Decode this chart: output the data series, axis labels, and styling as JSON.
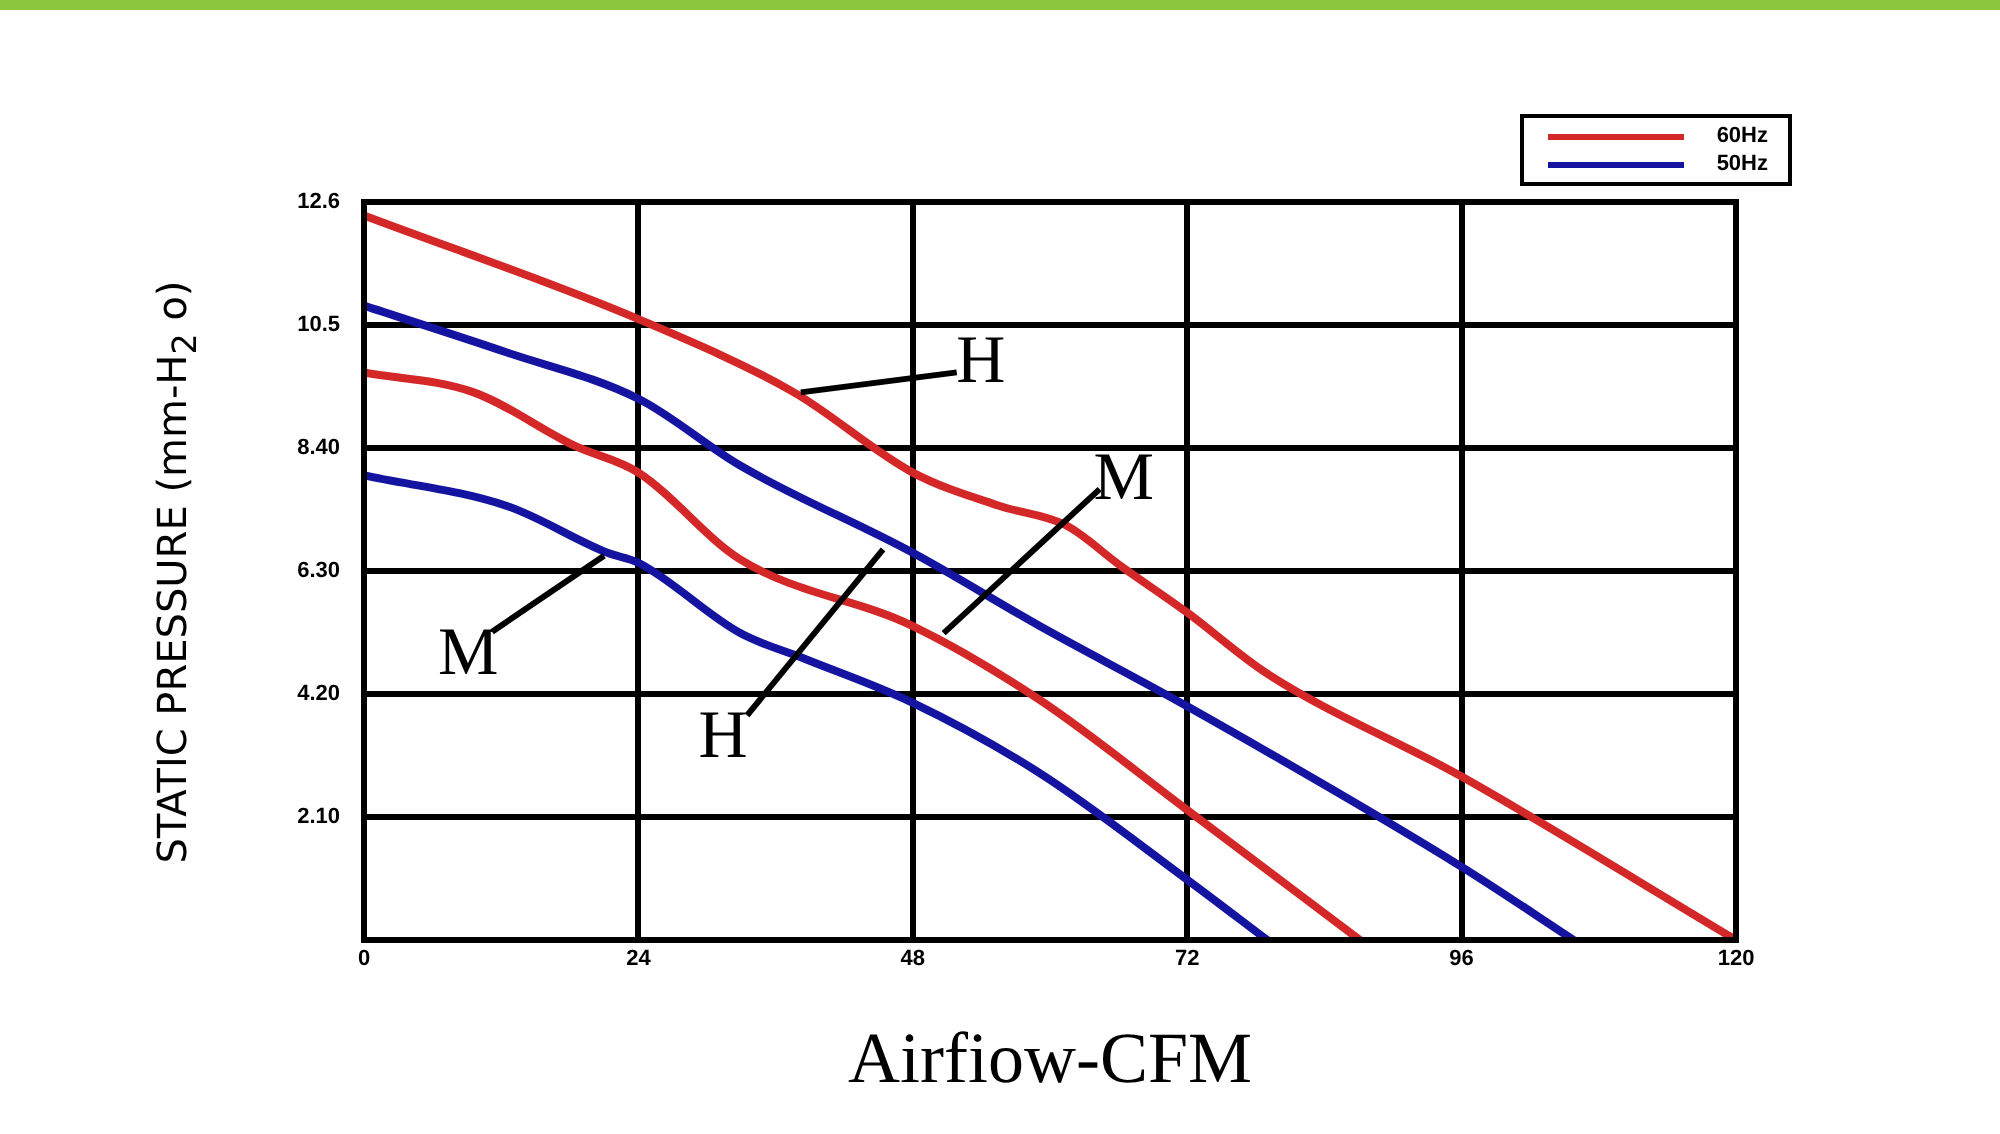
{
  "chart_data": {
    "type": "line",
    "xlabel": "Airfiow-CFM",
    "ylabel": "STATIC PRESSURE (mm-H$_{2}$ o)",
    "xlim": [
      0,
      120
    ],
    "xticks": [
      0,
      24,
      48,
      72,
      96,
      120
    ],
    "ylim": [
      0,
      12.6
    ],
    "yticks": [
      {
        "value": 0,
        "label": null
      },
      {
        "value": 2.1,
        "label": "2.10"
      },
      {
        "value": 4.2,
        "label": "4.20"
      },
      {
        "value": 6.3,
        "label": "6.30"
      },
      {
        "value": 8.4,
        "label": "8.40"
      },
      {
        "value": 10.5,
        "label": "10.5"
      },
      12.6
    ],
    "grid": true,
    "legend": "top right",
    "marker": "none",
    "line_style": "solid",
    "series": [
      {
        "name": "60Hz",
        "color": "#d42828",
        "x": [
          0,
          24,
          37.6,
          48,
          55.6,
          61.4,
          66.1,
          72,
          78.9,
          96,
          120
        ],
        "values": [
          12.37,
          10.6,
          9.35,
          7.98,
          7.41,
          7.08,
          6.4,
          5.59,
          4.56,
          2.79,
          0
        ]
      },
      {
        "name": "50Hz",
        "color": "#1414a0",
        "x": [
          0,
          12.5,
          24,
          32.9,
          48,
          59.1,
          72,
          96,
          105.8
        ],
        "values": [
          10.83,
          10.03,
          9.24,
          8.1,
          6.61,
          5.36,
          3.99,
          1.25,
          0
        ]
      },
      {
        "color": "#d42828",
        "x": [
          0,
          9.6,
          18.4,
          24,
          32.9,
          48,
          59.1,
          72,
          87.1
        ],
        "values": [
          9.69,
          9.35,
          8.44,
          7.98,
          6.5,
          5.36,
          4.1,
          2.22,
          0
        ]
      },
      {
        "color": "#1414a0",
        "x": [
          0,
          12.5,
          21.3,
          24,
          32.9,
          38.7,
          48,
          59.1,
          72,
          79
        ],
        "values": [
          7.93,
          7.41,
          6.61,
          6.44,
          5.24,
          4.79,
          4.05,
          2.85,
          1.03,
          0
        ]
      }
    ],
    "annotations": [
      {
        "text": "H",
        "x": 38.2,
        "y": 9.35
      },
      {
        "text": "M",
        "x": 21,
        "y": 6.56
      },
      {
        "text": "H",
        "x": 45.4,
        "y": 6.67
      },
      {
        "text": "M",
        "x": 50.7,
        "y": 5.24
      }
    ]
  }
}
